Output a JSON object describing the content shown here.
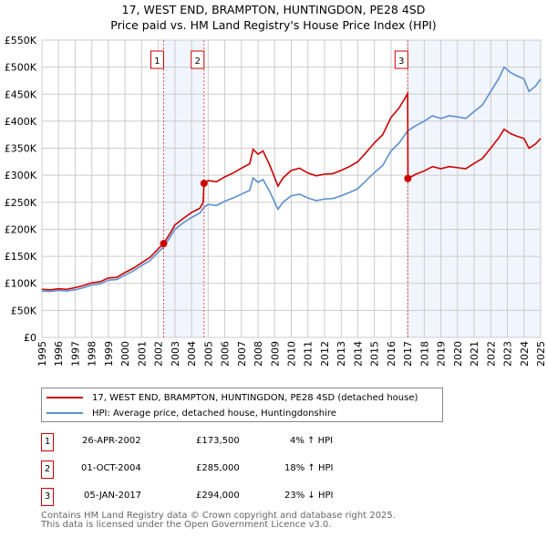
{
  "chart_data": {
    "type": "line",
    "title": "17, WEST END, BRAMPTON, HUNTINGDON, PE28 4SD",
    "subtitle": "Price paid vs. HM Land Registry's House Price Index (HPI)",
    "xlim": [
      1995,
      2025
    ],
    "ylim": [
      0,
      550000
    ],
    "yticks": [
      {
        "v": 0,
        "label": "£0"
      },
      {
        "v": 50000,
        "label": "£50K"
      },
      {
        "v": 100000,
        "label": "£100K"
      },
      {
        "v": 150000,
        "label": "£150K"
      },
      {
        "v": 200000,
        "label": "£200K"
      },
      {
        "v": 250000,
        "label": "£250K"
      },
      {
        "v": 300000,
        "label": "£300K"
      },
      {
        "v": 350000,
        "label": "£350K"
      },
      {
        "v": 400000,
        "label": "£400K"
      },
      {
        "v": 450000,
        "label": "£450K"
      },
      {
        "v": 500000,
        "label": "£500K"
      },
      {
        "v": 550000,
        "label": "£550K"
      }
    ],
    "xticks": [
      "1995",
      "1996",
      "1997",
      "1998",
      "1999",
      "2000",
      "2001",
      "2002",
      "2003",
      "2004",
      "2005",
      "2006",
      "2007",
      "2008",
      "2009",
      "2010",
      "2011",
      "2012",
      "2013",
      "2014",
      "2015",
      "2016",
      "2017",
      "2018",
      "2019",
      "2020",
      "2021",
      "2022",
      "2023",
      "2024",
      "2025"
    ],
    "grid": true,
    "shaded_ranges": [
      [
        2002.32,
        2004.75
      ],
      [
        2017.01,
        2025
      ]
    ],
    "series": [
      {
        "name": "17, WEST END, BRAMPTON, HUNTINGDON, PE28 4SD (detached house)",
        "color": "#cc0000",
        "x": [
          1995,
          1995.5,
          1996,
          1996.5,
          1997,
          1997.5,
          1998,
          1998.5,
          1999,
          1999.5,
          2000,
          2000.5,
          2001,
          2001.5,
          2002,
          2002.32,
          2002.7,
          2003,
          2003.5,
          2004,
          2004.5,
          2004.7,
          2004.75,
          2005,
          2005.5,
          2006,
          2006.5,
          2007,
          2007.5,
          2007.7,
          2008,
          2008.3,
          2008.7,
          2009.2,
          2009.5,
          2010,
          2010.5,
          2011,
          2011.5,
          2012,
          2012.5,
          2013,
          2013.5,
          2014,
          2014.5,
          2015,
          2015.5,
          2016,
          2016.5,
          2017,
          2017.02,
          2017.5,
          2018,
          2018.5,
          2019,
          2019.5,
          2020,
          2020.5,
          2021,
          2021.5,
          2022,
          2022.5,
          2022.8,
          2023.2,
          2023.5,
          2024,
          2024.3,
          2024.7,
          2025
        ],
        "y": [
          89,
          88,
          90,
          89,
          92,
          96,
          101,
          103,
          110,
          111,
          120,
          128,
          138,
          148,
          164,
          173.5,
          192,
          208,
          220,
          231,
          239,
          250,
          285,
          290,
          288,
          297,
          304,
          313,
          321,
          348,
          339,
          345,
          319,
          280,
          295,
          309,
          313,
          304,
          299,
          302,
          303,
          309,
          316,
          325,
          342,
          360,
          375,
          407,
          425,
          451,
          294,
          302,
          308,
          316,
          312,
          316,
          314,
          312,
          322,
          331,
          350,
          370,
          385,
          377,
          373,
          368,
          350,
          358,
          368
        ]
      },
      {
        "name": "HPI: Average price, detached house, Huntingdonshire",
        "color": "#5b8fd0",
        "x": [
          1995,
          1995.5,
          1996,
          1996.5,
          1997,
          1997.5,
          1998,
          1998.5,
          1999,
          1999.5,
          2000,
          2000.5,
          2001,
          2001.5,
          2002,
          2002.32,
          2002.7,
          2003,
          2003.5,
          2004,
          2004.5,
          2004.75,
          2005,
          2005.5,
          2006,
          2006.5,
          2007,
          2007.5,
          2007.7,
          2008,
          2008.3,
          2008.7,
          2009.2,
          2009.5,
          2010,
          2010.5,
          2011,
          2011.5,
          2012,
          2012.5,
          2013,
          2013.5,
          2014,
          2014.5,
          2015,
          2015.5,
          2016,
          2016.5,
          2017,
          2017.5,
          2018,
          2018.5,
          2019,
          2019.5,
          2020,
          2020.5,
          2021,
          2021.5,
          2022,
          2022.5,
          2022.8,
          2023.2,
          2023.5,
          2024,
          2024.3,
          2024.7,
          2025
        ],
        "y": [
          86,
          85,
          87,
          86,
          88,
          92,
          97,
          99,
          106,
          107,
          115,
          123,
          133,
          142,
          158,
          167,
          185,
          200,
          212,
          222,
          230,
          241,
          246,
          244,
          252,
          258,
          265,
          272,
          295,
          287,
          292,
          270,
          237,
          250,
          262,
          265,
          258,
          253,
          256,
          257,
          262,
          268,
          275,
          290,
          305,
          318,
          345,
          360,
          382,
          392,
          400,
          410,
          405,
          410,
          408,
          405,
          418,
          430,
          455,
          480,
          500,
          490,
          485,
          478,
          455,
          465,
          478
        ]
      }
    ],
    "y_unit_multiplier": 1000,
    "sales": [
      {
        "id": "1",
        "t": 2002.32,
        "date": "26-APR-2002",
        "price": 173500,
        "price_label": "£173,500",
        "hpi_diff": "4% ↑ HPI"
      },
      {
        "id": "2",
        "t": 2004.75,
        "date": "01-OCT-2004",
        "price": 285000,
        "price_label": "£285,000",
        "hpi_diff": "18% ↑ HPI"
      },
      {
        "id": "3",
        "t": 2017.01,
        "date": "05-JAN-2017",
        "price": 294000,
        "price_label": "£294,000",
        "hpi_diff": "23% ↓ HPI"
      }
    ],
    "legend_position": "below"
  },
  "footer": {
    "line1": "Contains HM Land Registry data © Crown copyright and database right 2025.",
    "line2": "This data is licensed under the Open Government Licence v3.0."
  }
}
